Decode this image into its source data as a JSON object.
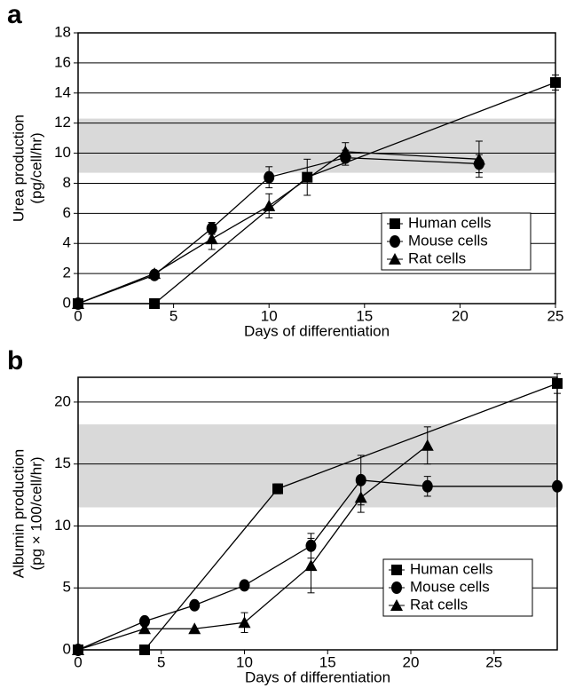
{
  "chart_data": [
    {
      "type": "line",
      "panel_label": "a",
      "xlabel": "Days of differentiation",
      "ylabel": [
        "Urea production",
        "(pg/cell/hr)"
      ],
      "xlim": [
        0,
        25
      ],
      "xticks": [
        0,
        5,
        10,
        15,
        20,
        25
      ],
      "ylim": [
        0,
        18
      ],
      "yticks": [
        0,
        2,
        4,
        6,
        8,
        10,
        12,
        14,
        16,
        18
      ],
      "grid": true,
      "shaded_range": [
        8.7,
        12.3
      ],
      "legend": "lower right",
      "series": [
        {
          "name": "Human cells",
          "marker": "square",
          "color": "#000000",
          "x": [
            0,
            4,
            12,
            25
          ],
          "values": [
            0,
            0,
            8.4,
            14.7
          ],
          "errors": [
            null,
            null,
            1.2,
            0.5
          ]
        },
        {
          "name": "Mouse cells",
          "marker": "circle",
          "color": "#000000",
          "x": [
            0,
            4,
            7,
            10,
            14,
            21
          ],
          "values": [
            0,
            1.9,
            5.0,
            8.4,
            9.7,
            9.3
          ],
          "errors": [
            null,
            null,
            0.4,
            0.7,
            0.5,
            0.6
          ]
        },
        {
          "name": "Rat cells",
          "marker": "triangle",
          "color": "#000000",
          "x": [
            0,
            4,
            7,
            10,
            14,
            21
          ],
          "values": [
            0,
            2.0,
            4.3,
            6.5,
            10.1,
            9.6
          ],
          "errors": [
            null,
            null,
            0.7,
            0.8,
            0.6,
            1.2
          ]
        }
      ]
    },
    {
      "type": "line",
      "panel_label": "b",
      "xlabel": "Days of differentiation",
      "ylabel": [
        "Albumin production",
        "(pg × 100/cell/hr)"
      ],
      "xlim": [
        0,
        28.8
      ],
      "xticks": [
        0,
        5,
        10,
        15,
        20,
        25
      ],
      "ylim": [
        0,
        22
      ],
      "yticks": [
        0,
        5,
        10,
        15,
        20
      ],
      "grid": true,
      "shaded_range": [
        11.5,
        18.2
      ],
      "legend": "lower right",
      "series": [
        {
          "name": "Human cells",
          "marker": "square",
          "color": "#000000",
          "x": [
            0,
            4,
            12,
            28.8
          ],
          "values": [
            0,
            0,
            13,
            21.5
          ],
          "errors": [
            null,
            null,
            0.4,
            0.8
          ]
        },
        {
          "name": "Mouse cells",
          "marker": "circle",
          "color": "#000000",
          "x": [
            0,
            4,
            7,
            10,
            14,
            17,
            21,
            28.8
          ],
          "values": [
            0,
            2.3,
            3.6,
            5.2,
            8.4,
            13.7,
            13.2,
            13.2
          ],
          "errors": [
            null,
            null,
            null,
            null,
            1.0,
            2.0,
            0.8,
            null
          ]
        },
        {
          "name": "Rat cells",
          "marker": "triangle",
          "color": "#000000",
          "x": [
            0,
            4,
            7,
            10,
            14,
            17,
            21
          ],
          "values": [
            0,
            1.7,
            1.7,
            2.2,
            6.8,
            12.3,
            16.5
          ],
          "errors": [
            null,
            null,
            null,
            0.8,
            2.2,
            1.2,
            1.5
          ]
        }
      ]
    }
  ]
}
